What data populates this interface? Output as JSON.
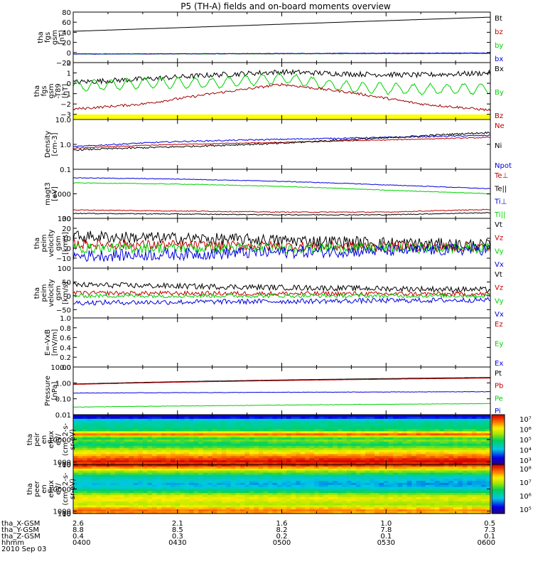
{
  "title": "P5 (TH-A) fields and on-board moments overview",
  "footer": {
    "rows": [
      {
        "label": "tha_X-GSM",
        "values": [
          "2.6",
          "2.1",
          "1.6",
          "1.0",
          "0.5"
        ]
      },
      {
        "label": "tha_Y-GSM",
        "values": [
          "8.8",
          "8.5",
          "8.2",
          "7.8",
          "7.3"
        ]
      },
      {
        "label": "tha_Z-GSM",
        "values": [
          "0.4",
          "0.3",
          "0.2",
          "0.1",
          "0.1"
        ]
      },
      {
        "label": "hhmm",
        "values": [
          "0400",
          "0430",
          "0500",
          "0530",
          "0600"
        ]
      }
    ],
    "date": "2010 Sep 03"
  },
  "colors": {
    "black": "#000000",
    "red": "#c00000",
    "green": "#00d000",
    "blue": "#0000e0",
    "darkred": "#a00000",
    "yellow": "#ffff00"
  },
  "chart_data": [
    {
      "type": "line",
      "ylabel": [
        "tha",
        "fgs",
        "gsm",
        "[nT]"
      ],
      "ylim": [
        -20,
        80
      ],
      "yticks": [
        "80",
        "60",
        "40",
        "20",
        "0",
        "−20"
      ],
      "legend": [
        {
          "name": "Bt",
          "color": "#000000"
        },
        {
          "name": "bz",
          "color": "#c00000"
        },
        {
          "name": "by",
          "color": "#00d000"
        },
        {
          "name": "bx",
          "color": "#0000e0"
        }
      ],
      "series": [
        {
          "name": "Bt",
          "color": "#000000",
          "x": [
            0,
            120
          ],
          "y": [
            42,
            70
          ],
          "noise": 0
        },
        {
          "name": "bz",
          "color": "#c00000",
          "x": [
            0,
            120
          ],
          "y": [
            -3,
            -2
          ],
          "noise": 0.5
        },
        {
          "name": "by",
          "color": "#00d000",
          "x": [
            0,
            120
          ],
          "y": [
            -3,
            -2
          ],
          "noise": 0.5
        },
        {
          "name": "bx",
          "color": "#0000e0",
          "x": [
            0,
            120
          ],
          "y": [
            -3,
            -1
          ],
          "noise": 0.5
        }
      ]
    },
    {
      "type": "line",
      "ylabel": [
        "tha",
        "fgs",
        "gsm",
        "-T89",
        "[nT]"
      ],
      "ylim": [
        -3.5,
        2
      ],
      "yticks": [
        "2",
        "1",
        "0",
        "−1",
        "−2",
        "−3"
      ],
      "legend": [
        {
          "name": "Bx",
          "color": "#000000"
        },
        {
          "name": "By",
          "color": "#00d000"
        },
        {
          "name": "Bz",
          "color": "#a00000"
        }
      ],
      "bar": {
        "color": "#ffff00"
      },
      "series": [
        {
          "name": "Bx",
          "color": "#000000",
          "x": [
            0,
            20,
            40,
            60,
            80,
            100,
            120
          ],
          "y": [
            0.1,
            0.4,
            0.8,
            1.1,
            0.9,
            0.8,
            1.0
          ],
          "noise": 0.25
        },
        {
          "name": "By",
          "color": "#00d000",
          "x": [
            0,
            20,
            40,
            60,
            80,
            100,
            120
          ],
          "y": [
            -0.3,
            0.0,
            0.0,
            0.5,
            -0.4,
            -0.6,
            -0.5
          ],
          "noise": 0.6
        },
        {
          "name": "Bz",
          "color": "#a00000",
          "x": [
            0,
            20,
            40,
            60,
            80,
            100,
            120
          ],
          "y": [
            -2.5,
            -2.0,
            -1.0,
            -0.1,
            -0.9,
            -2.0,
            -2.6
          ],
          "noise": 0.12
        }
      ]
    },
    {
      "type": "line",
      "log": true,
      "ylabel": [
        "Density",
        "[cm-3]"
      ],
      "ylim": [
        0.1,
        10
      ],
      "yticks": [
        "10.0",
        "1.0",
        "0.1"
      ],
      "legend": [
        {
          "name": "Ne",
          "color": "#c00000"
        },
        {
          "name": "Ni",
          "color": "#000000"
        },
        {
          "name": "Npot",
          "color": "#0000e0"
        }
      ],
      "series": [
        {
          "name": "Npot",
          "color": "#0000e0",
          "x": [
            0,
            30,
            60,
            90,
            120
          ],
          "y": [
            0.8,
            1.3,
            1.6,
            1.9,
            2.3
          ],
          "noise": 0.06
        },
        {
          "name": "Ne",
          "color": "#c00000",
          "x": [
            0,
            30,
            60,
            90,
            120
          ],
          "y": [
            0.7,
            1.0,
            1.2,
            1.5,
            1.9
          ],
          "noise": 0.04
        },
        {
          "name": "Ni",
          "color": "#000000",
          "x": [
            0,
            30,
            60,
            90,
            120
          ],
          "y": [
            0.6,
            0.8,
            1.1,
            1.8,
            3.0
          ],
          "noise": 0.08
        }
      ]
    },
    {
      "type": "line",
      "log": true,
      "ylabel": [
        "magt3",
        "[eV]"
      ],
      "ylim": [
        100,
        10000
      ],
      "yticks": [
        "1000",
        "100"
      ],
      "legend": [
        {
          "name": "Te⊥",
          "color": "#c00000"
        },
        {
          "name": "Te||",
          "color": "#000000"
        },
        {
          "name": "Ti⊥",
          "color": "#0000e0"
        },
        {
          "name": "Ti||",
          "color": "#00d000"
        }
      ],
      "series": [
        {
          "name": "Ti⊥",
          "color": "#0000e0",
          "x": [
            0,
            30,
            60,
            90,
            120
          ],
          "y": [
            4500,
            4000,
            3200,
            2300,
            1600
          ],
          "noise": 0.03
        },
        {
          "name": "Ti||",
          "color": "#00d000",
          "x": [
            0,
            30,
            60,
            90,
            120
          ],
          "y": [
            2800,
            2500,
            2000,
            1400,
            1000
          ],
          "noise": 0.03
        },
        {
          "name": "Te⊥",
          "color": "#c00000",
          "x": [
            0,
            30,
            60,
            90,
            120
          ],
          "y": [
            220,
            200,
            180,
            180,
            230
          ],
          "noise": 0.04
        },
        {
          "name": "Te||",
          "color": "#000000",
          "x": [
            0,
            30,
            60,
            90,
            120
          ],
          "y": [
            160,
            150,
            140,
            140,
            170
          ],
          "noise": 0.04
        }
      ]
    },
    {
      "type": "line",
      "ylabel": [
        "tha",
        "peim",
        "velocity",
        "gsm",
        "[km/s]"
      ],
      "ylim": [
        -20,
        30
      ],
      "yticks": [
        "30",
        "20",
        "10",
        "0",
        "−10"
      ],
      "legend": [
        {
          "name": "Vt",
          "color": "#000000"
        },
        {
          "name": "Vz",
          "color": "#c00000"
        },
        {
          "name": "Vy",
          "color": "#00d000"
        },
        {
          "name": "Vx",
          "color": "#0000e0"
        }
      ],
      "series": [
        {
          "name": "Vt",
          "color": "#000000",
          "x": [
            0,
            60,
            120
          ],
          "y": [
            12,
            8,
            3
          ],
          "noise": 6
        },
        {
          "name": "Vz",
          "color": "#c00000",
          "x": [
            0,
            60,
            120
          ],
          "y": [
            4,
            2,
            1
          ],
          "noise": 5
        },
        {
          "name": "Vy",
          "color": "#00d000",
          "x": [
            0,
            60,
            120
          ],
          "y": [
            0,
            0,
            0
          ],
          "noise": 5
        },
        {
          "name": "Vx",
          "color": "#0000e0",
          "x": [
            0,
            60,
            120
          ],
          "y": [
            -8,
            -4,
            -1
          ],
          "noise": 6
        }
      ]
    },
    {
      "type": "line",
      "ylabel": [
        "tha",
        "peim",
        "velocity",
        "gsm",
        "[km/s]"
      ],
      "ylim": [
        -80,
        100
      ],
      "yticks": [
        "100",
        "50",
        "0",
        "−50"
      ],
      "legend": [
        {
          "name": "Vt",
          "color": "#000000"
        },
        {
          "name": "Vz",
          "color": "#c00000"
        },
        {
          "name": "Vy",
          "color": "#00d000"
        },
        {
          "name": "Vx",
          "color": "#0000e0"
        }
      ],
      "series": [
        {
          "name": "Vt",
          "color": "#000000",
          "x": [
            0,
            60,
            120
          ],
          "y": [
            40,
            30,
            22
          ],
          "noise": 10
        },
        {
          "name": "Vz",
          "color": "#c00000",
          "x": [
            0,
            60,
            120
          ],
          "y": [
            10,
            8,
            6
          ],
          "noise": 8
        },
        {
          "name": "Vy",
          "color": "#00d000",
          "x": [
            0,
            60,
            120
          ],
          "y": [
            0,
            0,
            0
          ],
          "noise": 7
        },
        {
          "name": "Vx",
          "color": "#0000e0",
          "x": [
            0,
            60,
            120
          ],
          "y": [
            -25,
            -20,
            -15
          ],
          "noise": 9
        }
      ]
    },
    {
      "type": "line",
      "ylabel": [
        "E=-VxB",
        "[mV/m]"
      ],
      "ylim": [
        0,
        1
      ],
      "yticks": [
        "1.0",
        "0.8",
        "0.6",
        "0.4",
        "0.2",
        "0.0"
      ],
      "legend": [
        {
          "name": "Ez",
          "color": "#c00000"
        },
        {
          "name": "Ey",
          "color": "#00d000"
        },
        {
          "name": "Ex",
          "color": "#0000e0"
        }
      ],
      "series": []
    },
    {
      "type": "line",
      "log": true,
      "ylabel": [
        "Pressure",
        "[nPa]"
      ],
      "ylim": [
        0.01,
        10
      ],
      "yticks": [
        "10.00",
        "1.00",
        "0.10",
        "0.01"
      ],
      "legend": [
        {
          "name": "Pt",
          "color": "#000000"
        },
        {
          "name": "Pb",
          "color": "#c00000"
        },
        {
          "name": "Pe",
          "color": "#00d000"
        },
        {
          "name": "Pi",
          "color": "#0000e0"
        }
      ],
      "series": [
        {
          "name": "Pt",
          "color": "#000000",
          "x": [
            0,
            120
          ],
          "y": [
            0.85,
            2.2
          ],
          "noise": 0.01
        },
        {
          "name": "Pb",
          "color": "#c00000",
          "x": [
            0,
            120
          ],
          "y": [
            0.8,
            2.0
          ],
          "noise": 0.01
        },
        {
          "name": "Pi",
          "color": "#0000e0",
          "x": [
            0,
            120
          ],
          "y": [
            0.23,
            0.28
          ],
          "noise": 0.03
        },
        {
          "name": "Pe",
          "color": "#00d000",
          "x": [
            0,
            120
          ],
          "y": [
            0.03,
            0.05
          ],
          "noise": 0.03
        }
      ]
    },
    {
      "type": "heatmap",
      "ylabel": [
        "tha",
        "peir",
        "en",
        "eflux",
        "eV/",
        "(cm^2-s-",
        "sr-eV)"
      ],
      "ylim": [
        10,
        20000
      ],
      "yticks": [
        "10000",
        "1000",
        "100",
        "10"
      ],
      "colorbar": [
        "10⁷",
        "10⁶",
        "10⁵",
        "10⁴",
        "10³"
      ],
      "profile": [
        0.06,
        0.12,
        0.3,
        0.36,
        0.38,
        0.4,
        0.42,
        0.48,
        0.72,
        0.85,
        0.62,
        0.5,
        0.55,
        0.5,
        0.45,
        0.52,
        0.6,
        0.68,
        0.74,
        0.8,
        0.86,
        0.92,
        0.97,
        0.92
      ]
    },
    {
      "type": "heatmap",
      "ylabel": [
        "tha",
        "peer",
        "en",
        "eflux",
        "eV/",
        "(cm^2-s-",
        "sr-eV)"
      ],
      "ylim": [
        7,
        20000
      ],
      "yticks": [
        "10000",
        "1000",
        "100",
        "10"
      ],
      "colorbar": [
        "10⁸",
        "10⁷",
        "10⁶",
        "10⁵"
      ],
      "profile": [
        0.98,
        0.85,
        0.72,
        0.62,
        0.55,
        0.42,
        0.38,
        0.35,
        0.32,
        0.3,
        0.32,
        0.36,
        0.44,
        0.52,
        0.62,
        0.7,
        0.74,
        0.72,
        0.68,
        0.66,
        0.72,
        0.82,
        0.88,
        0.84
      ]
    }
  ]
}
